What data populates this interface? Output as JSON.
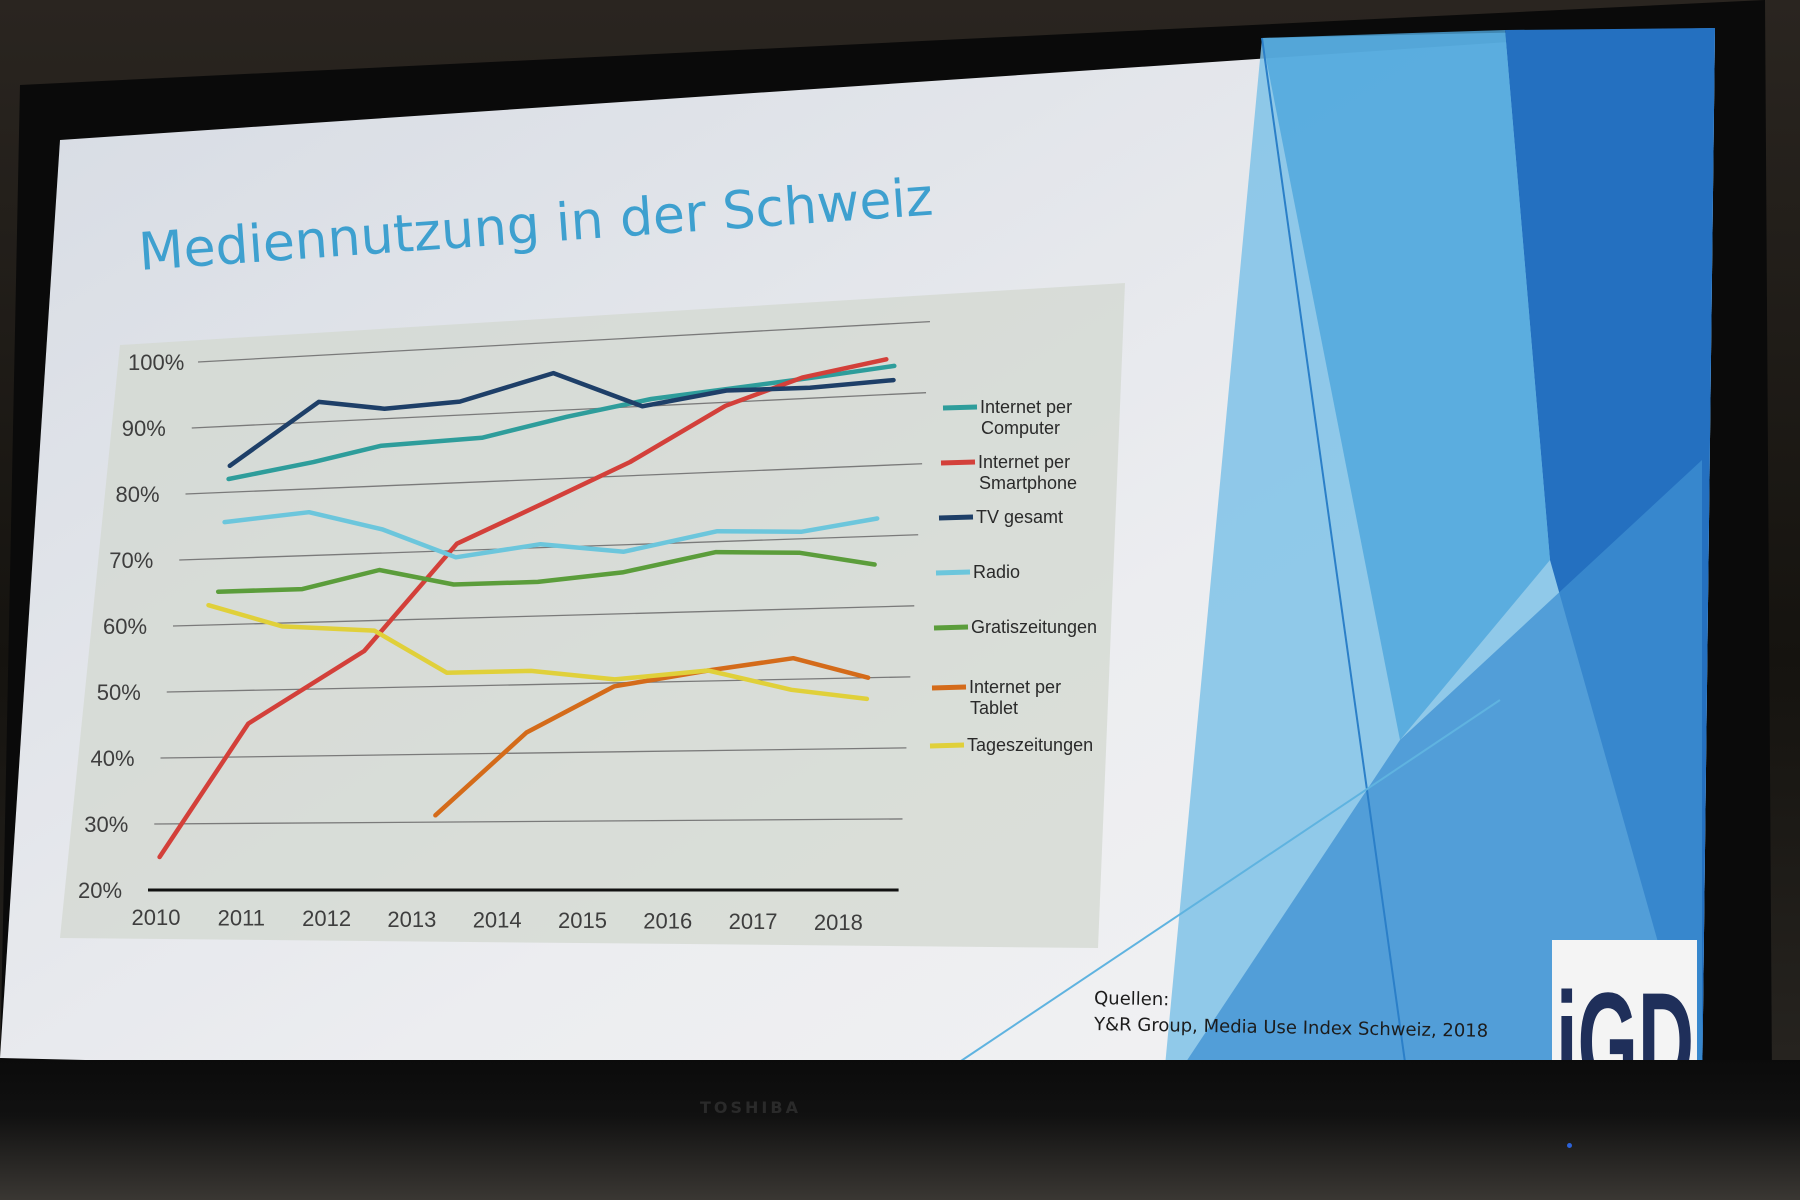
{
  "slide": {
    "title": "Mediennutzung in der Schweiz",
    "source_heading": "Quellen:",
    "source_text": "Y&R Group, Media Use Index Schweiz, 2018",
    "logo": "iGD",
    "monitor_brand": "TOSHIBA"
  },
  "chart_data": {
    "type": "line",
    "x": [
      2010,
      2011,
      2012,
      2013,
      2014,
      2015,
      2016,
      2017,
      2018
    ],
    "ylim": [
      20,
      100
    ],
    "yticks": [
      "20%",
      "30%",
      "40%",
      "50%",
      "60%",
      "70%",
      "80%",
      "90%",
      "100%"
    ],
    "ytick_values": [
      20,
      30,
      40,
      50,
      60,
      70,
      80,
      90,
      100
    ],
    "xticks": [
      "2010",
      "2011",
      "2012",
      "2013",
      "2014",
      "2015",
      "2016",
      "2017",
      "2018"
    ],
    "grid": true,
    "legend_position": "right",
    "series": [
      {
        "name": "Internet per Computer",
        "color": "#2e9d9b",
        "points": [
          [
            2010.5,
            82
          ],
          [
            2011.5,
            84
          ],
          [
            2012.3,
            86
          ],
          [
            2013.5,
            86.5
          ],
          [
            2014.5,
            89
          ],
          [
            2015.5,
            91
          ],
          [
            2016.5,
            92
          ],
          [
            2017.5,
            93
          ],
          [
            2018.4,
            94
          ]
        ]
      },
      {
        "name": "Internet per Smartphone",
        "color": "#d3403a",
        "points": [
          [
            2010.1,
            25
          ],
          [
            2011,
            45
          ],
          [
            2012.3,
            55.5
          ],
          [
            2013.3,
            71
          ],
          [
            2014.3,
            76.5
          ],
          [
            2015.3,
            82
          ],
          [
            2016.4,
            89.5
          ],
          [
            2017.3,
            93
          ],
          [
            2018.3,
            95
          ]
        ]
      },
      {
        "name": "TV gesamt",
        "color": "#1e3f68",
        "points": [
          [
            2010.5,
            84
          ],
          [
            2011.5,
            93
          ],
          [
            2012.3,
            91.5
          ],
          [
            2013.2,
            92
          ],
          [
            2014.3,
            95.5
          ],
          [
            2015.4,
            90
          ],
          [
            2016.4,
            91.7
          ],
          [
            2017.4,
            91.5
          ],
          [
            2018.4,
            92
          ]
        ]
      },
      {
        "name": "Radio",
        "color": "#6cc6dc",
        "points": [
          [
            2010.5,
            75.5
          ],
          [
            2011.5,
            76.5
          ],
          [
            2012.4,
            73.5
          ],
          [
            2013.3,
            69
          ],
          [
            2014.3,
            70.5
          ],
          [
            2015.3,
            69
          ],
          [
            2016.4,
            71.5
          ],
          [
            2017.4,
            71
          ],
          [
            2018.3,
            72.5
          ]
        ]
      },
      {
        "name": "Gratiszeitungen",
        "color": "#5b9d3b",
        "points": [
          [
            2010.5,
            65
          ],
          [
            2011.5,
            65
          ],
          [
            2012.4,
            67.5
          ],
          [
            2013.3,
            65
          ],
          [
            2014.3,
            65
          ],
          [
            2015.3,
            66
          ],
          [
            2016.4,
            68.5
          ],
          [
            2017.4,
            68
          ],
          [
            2018.3,
            66
          ]
        ]
      },
      {
        "name": "Internet per Tablet",
        "color": "#d46b1a",
        "points": [
          [
            2013.3,
            31
          ],
          [
            2014.3,
            43
          ],
          [
            2015.3,
            49.5
          ],
          [
            2016.4,
            51.5
          ],
          [
            2017.4,
            53
          ],
          [
            2018.3,
            50
          ]
        ]
      },
      {
        "name": "Tageszeitungen",
        "color": "#e0d03a",
        "points": [
          [
            2010.4,
            63
          ],
          [
            2011.3,
            59.5
          ],
          [
            2012.4,
            58.5
          ],
          [
            2013.3,
            52
          ],
          [
            2014.3,
            52
          ],
          [
            2015.3,
            50.5
          ],
          [
            2016.4,
            51.5
          ],
          [
            2017.4,
            48.5
          ],
          [
            2018.3,
            47
          ]
        ]
      }
    ],
    "legend": [
      {
        "series": 0,
        "lines": [
          "Internet per",
          "Computer"
        ]
      },
      {
        "series": 1,
        "lines": [
          "Internet per",
          "Smartphone"
        ]
      },
      {
        "series": 2,
        "lines": [
          "TV gesamt"
        ]
      },
      {
        "series": 3,
        "lines": [
          "Radio"
        ]
      },
      {
        "series": 4,
        "lines": [
          "Gratiszeitungen"
        ]
      },
      {
        "series": 5,
        "lines": [
          "Internet per",
          "Tablet"
        ]
      },
      {
        "series": 6,
        "lines": [
          "Tageszeitungen"
        ]
      }
    ]
  }
}
